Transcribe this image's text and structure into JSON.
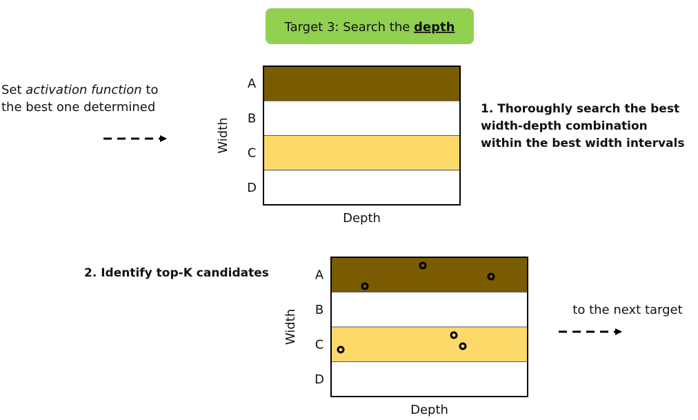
{
  "title": {
    "prefix": "Target 3: Search the",
    "emphasis": "depth"
  },
  "note": {
    "before": "Set",
    "emphasis": "activation function",
    "after": "to",
    "line2": "the best one determined"
  },
  "step1": {
    "lines": [
      "1. Thoroughly search the best",
      "width-depth combination",
      "within the best width intervals"
    ]
  },
  "step2": {
    "text": "2. Identify top-K candidates"
  },
  "next": {
    "text": "to the next target"
  },
  "grids": [
    {
      "rows": [
        "A",
        "B",
        "C",
        "D"
      ],
      "y_label": "Width",
      "x_label": "Depth"
    },
    {
      "rows": [
        "A",
        "B",
        "C",
        "D"
      ],
      "y_label": "Width",
      "x_label": "Depth"
    }
  ]
}
